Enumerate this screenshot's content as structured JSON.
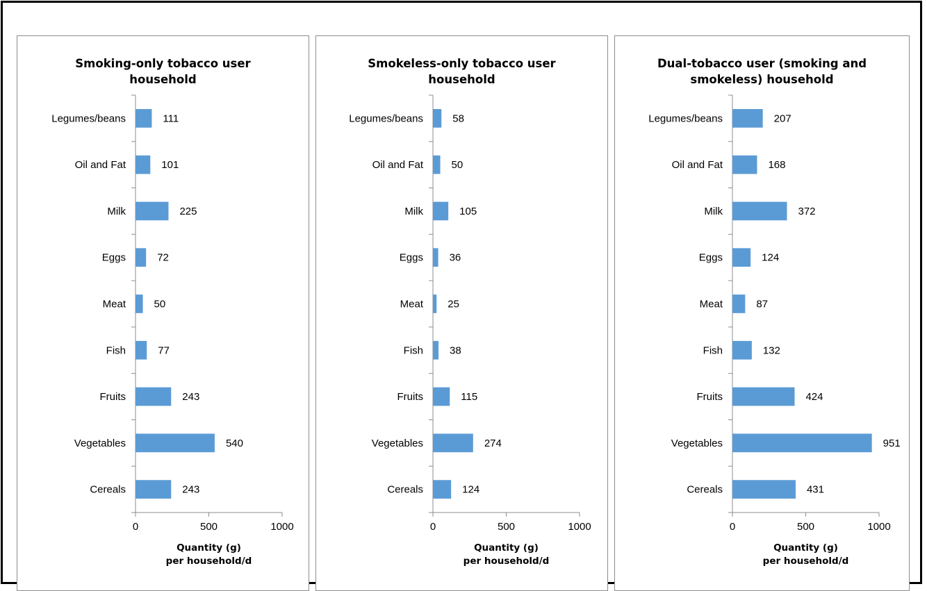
{
  "chart_data": [
    {
      "type": "bar",
      "orientation": "horizontal",
      "title": [
        "Smoking-only tobacco user",
        "household"
      ],
      "xlabel": [
        "Quantity (g)",
        "per household/d"
      ],
      "categories": [
        "Legumes/beans",
        "Oil and Fat",
        "Milk",
        "Eggs",
        "Meat",
        "Fish",
        "Fruits",
        "Vegetables",
        "Cereals"
      ],
      "values": [
        111,
        101,
        225,
        72,
        50,
        77,
        243,
        540,
        243
      ],
      "xlim": [
        0,
        1000
      ],
      "xticks": [
        "0",
        "500",
        "1000"
      ],
      "bar_color": "#5b9bd5",
      "grid": false,
      "legend": "none"
    },
    {
      "type": "bar",
      "orientation": "horizontal",
      "title": [
        "Smokeless-only tobacco user",
        "household"
      ],
      "xlabel": [
        "Quantity (g)",
        "per household/d"
      ],
      "categories": [
        "Legumes/beans",
        "Oil and Fat",
        "Milk",
        "Eggs",
        "Meat",
        "Fish",
        "Fruits",
        "Vegetables",
        "Cereals"
      ],
      "values": [
        58,
        50,
        105,
        36,
        25,
        38,
        115,
        274,
        124
      ],
      "xlim": [
        0,
        1000
      ],
      "xticks": [
        "0",
        "500",
        "1000"
      ],
      "bar_color": "#5b9bd5",
      "grid": false,
      "legend": "none"
    },
    {
      "type": "bar",
      "orientation": "horizontal",
      "title": [
        "Dual-tobacco user (smoking and",
        "smokeless) household"
      ],
      "xlabel": [
        "Quantity (g)",
        "per household/d"
      ],
      "categories": [
        "Legumes/beans",
        "Oil and Fat",
        "Milk",
        "Eggs",
        "Meat",
        "Fish",
        "Fruits",
        "Vegetables",
        "Cereals"
      ],
      "values": [
        207,
        168,
        372,
        124,
        87,
        132,
        424,
        951,
        431
      ],
      "xlim": [
        0,
        1000
      ],
      "xticks": [
        "0",
        "500",
        "1000"
      ],
      "bar_color": "#5b9bd5",
      "grid": false,
      "legend": "none"
    }
  ]
}
